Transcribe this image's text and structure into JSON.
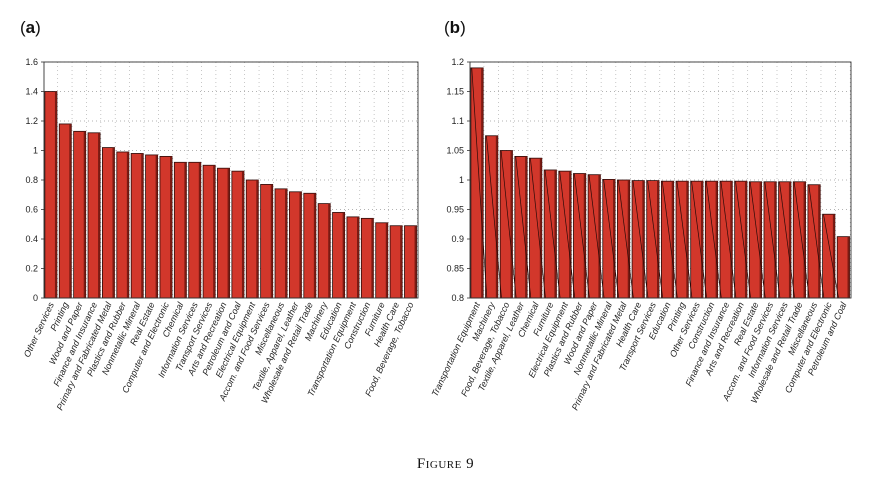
{
  "caption": "Figure 9",
  "chart_data": [
    {
      "type": "bar",
      "panel_label": "(a)",
      "ylim": [
        0,
        1.6
      ],
      "y_ticks": [
        "0",
        "0.2",
        "0.4",
        "0.6",
        "0.8",
        "1",
        "1.2",
        "1.4",
        "1.6"
      ],
      "grid": true,
      "bar_color": "#d2372b",
      "categories": [
        "Other Services",
        "Printing",
        "Wood and Paper",
        "Finance and Insurance",
        "Primary and Fabricated Metal",
        "Plastics and Rubber",
        "Nonmetallic Mineral",
        "Real Estate",
        "Computer and Electronic",
        "Chemical",
        "Information Services",
        "Transport Services",
        "Arts and Recreation",
        "Petroleum and Coal",
        "Electrical Equipment",
        "Accom. and Food Services",
        "Miscellaneous",
        "Textile, Apparel, Leather",
        "Wholesale and Retail Trade",
        "Machinery",
        "Education",
        "Transportation Equipment",
        "Construction",
        "Furniture",
        "Health Care",
        "Food, Beverage, Tobacco"
      ],
      "values": [
        1.4,
        1.18,
        1.13,
        1.12,
        1.02,
        0.99,
        0.98,
        0.97,
        0.96,
        0.92,
        0.92,
        0.9,
        0.88,
        0.86,
        0.8,
        0.77,
        0.74,
        0.72,
        0.71,
        0.64,
        0.58,
        0.55,
        0.54,
        0.51,
        0.49,
        0.49
      ]
    },
    {
      "type": "bar",
      "panel_label": "(b)",
      "ylim": [
        0.8,
        1.2
      ],
      "y_ticks": [
        "0.8",
        "0.85",
        "0.9",
        "0.95",
        "1",
        "1.05",
        "1.1",
        "1.15",
        "1.2"
      ],
      "grid": true,
      "bar_color": "#d2372b",
      "categories": [
        "Transportation Equipment",
        "Machinery",
        "Food, Beverage, Tobacco",
        "Textile, Apparel, Leather",
        "Chemical",
        "Furniture",
        "Electrical Equipment",
        "Plastics and Rubber",
        "Wood and Paper",
        "Nonmetallic Mineral",
        "Primary and Fabricated Metal",
        "Health Care",
        "Transport Services",
        "Education",
        "Printing",
        "Other Services",
        "Construction",
        "Finance and Insurance",
        "Arts and Recreation",
        "Real Estate",
        "Accom. and Food Services",
        "Information Services",
        "Wholesale and Retail Trade",
        "Miscellaneous",
        "Computer and Electronic",
        "Petroleum and Coal"
      ],
      "values": [
        1.19,
        1.075,
        1.05,
        1.04,
        1.037,
        1.017,
        1.015,
        1.011,
        1.009,
        1.001,
        1.0,
        0.999,
        0.999,
        0.998,
        0.998,
        0.998,
        0.998,
        0.998,
        0.998,
        0.997,
        0.997,
        0.997,
        0.997,
        0.992,
        0.942,
        0.904
      ]
    }
  ]
}
